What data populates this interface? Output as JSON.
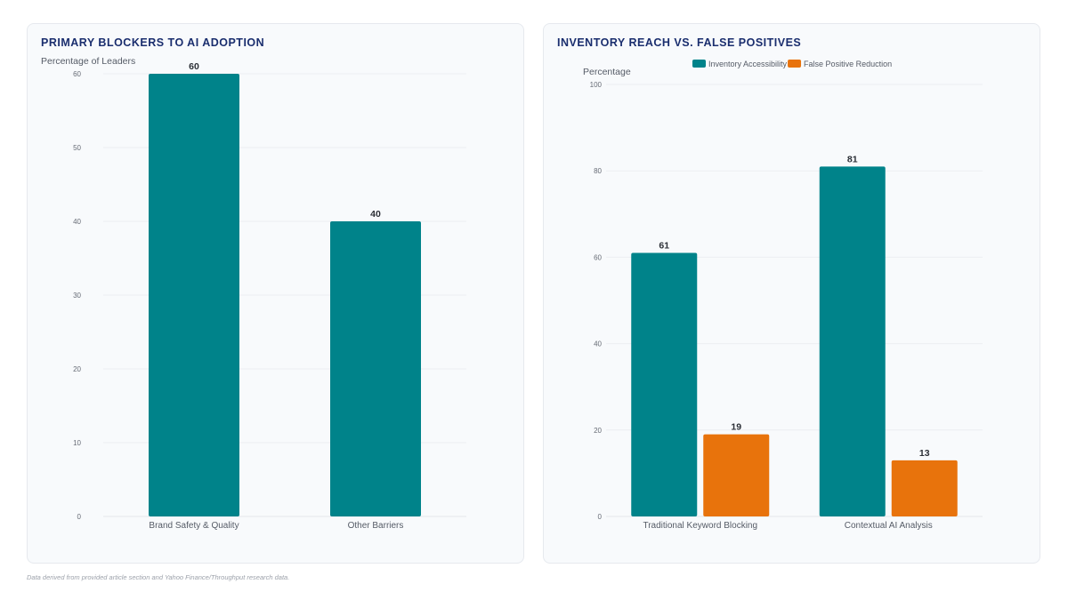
{
  "chart_data": [
    {
      "type": "bar",
      "title": "PRIMARY BLOCKERS TO AI ADOPTION",
      "ylabel": "Percentage of Leaders",
      "xlabel": "",
      "categories": [
        "Brand Safety & Quality",
        "Other Barriers"
      ],
      "values": [
        60,
        40
      ],
      "ylim": [
        0,
        60
      ],
      "yticks": [
        0,
        10,
        20,
        30,
        40,
        50,
        60
      ],
      "color": "#00838a",
      "grid": true,
      "data_labels": true
    },
    {
      "type": "bar",
      "title": "INVENTORY REACH VS. FALSE POSITIVES",
      "ylabel": "Percentage",
      "xlabel": "",
      "categories": [
        "Traditional Keyword Blocking",
        "Contextual AI Analysis"
      ],
      "series": [
        {
          "name": "Inventory Accessibility",
          "values": [
            61,
            81
          ],
          "color": "#00838a"
        },
        {
          "name": "False Positive Reduction",
          "values": [
            19,
            13
          ],
          "color": "#e8730c"
        }
      ],
      "ylim": [
        0,
        100
      ],
      "yticks": [
        0,
        20,
        40,
        60,
        80,
        100
      ],
      "legend_position": "top",
      "grid": true,
      "data_labels": true
    }
  ],
  "footnote": "Data derived from provided article section and Yahoo Finance/Throughput research data."
}
